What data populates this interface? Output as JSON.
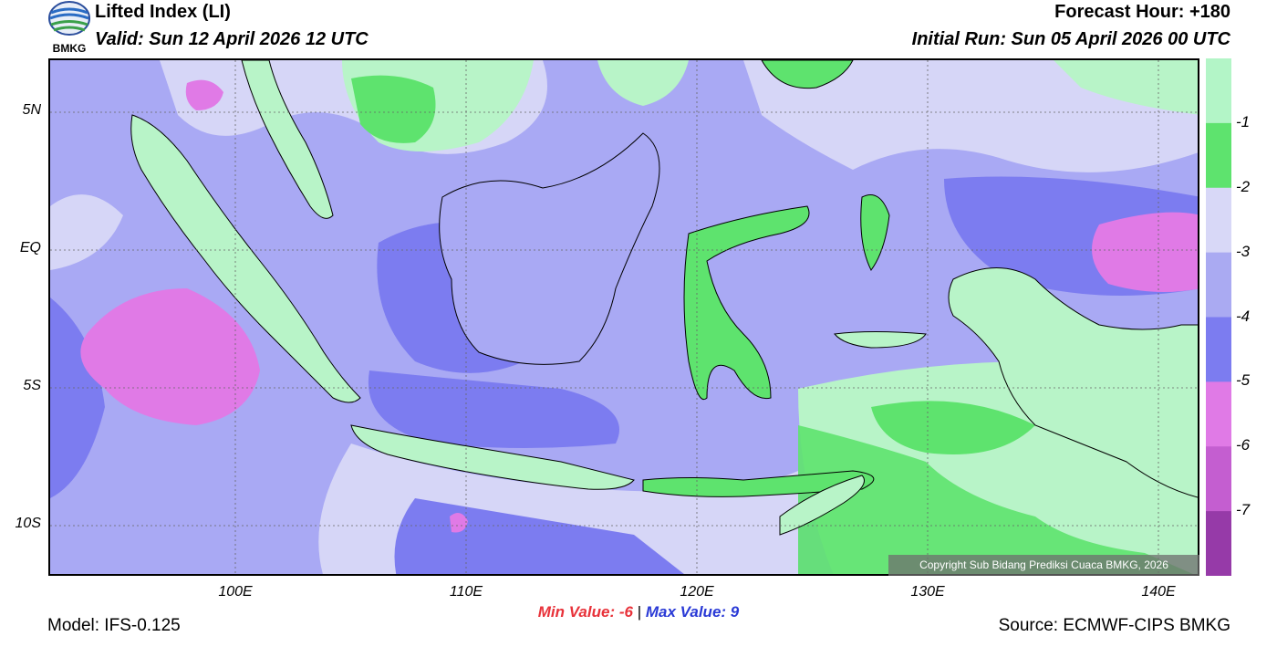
{
  "header": {
    "title": "Lifted Index (LI)",
    "valid": "Valid: Sun 12 April 2026 12 UTC",
    "forecast_hour": "Forecast Hour: +180",
    "initial_run": "Initial Run: Sun 05 April 2026 00 UTC",
    "logo_text": "BMKG"
  },
  "map": {
    "lat_labels": [
      "5N",
      "EQ",
      "5S",
      "10S"
    ],
    "lon_labels": [
      "100E",
      "110E",
      "120E",
      "130E",
      "140E"
    ],
    "colors": {
      "ocean_base": "#a9a9f4",
      "li_minus3": "#d6d6f7",
      "li_minus2": "#b8f4c8",
      "li_minus1": "#5ee36e",
      "li_minus4": "#a8a8f2",
      "li_minus5": "#7c7cf0",
      "li_minus6": "#e07ae6",
      "li_minus7": "#b458c9",
      "coastline": "#000000"
    },
    "copyright": "Copyright Sub Bidang Prediksi Cuaca BMKG, 2026"
  },
  "colorbar": {
    "levels": [
      "-1",
      "-2",
      "-3",
      "-4",
      "-5",
      "-6",
      "-7"
    ],
    "colors": [
      "#b3f5c7",
      "#5ee36e",
      "#d8d8f7",
      "#aaaaf2",
      "#7c7cf0",
      "#e07ae6",
      "#c45ed0",
      "#963aa8"
    ]
  },
  "stats": {
    "min_label": "Min Value:",
    "min_value": "-6",
    "separator": "|",
    "max_label": "Max Value:",
    "max_value": "9"
  },
  "footer": {
    "model": "Model: IFS-0.125",
    "source": "Source: ECMWF-CIPS BMKG"
  }
}
